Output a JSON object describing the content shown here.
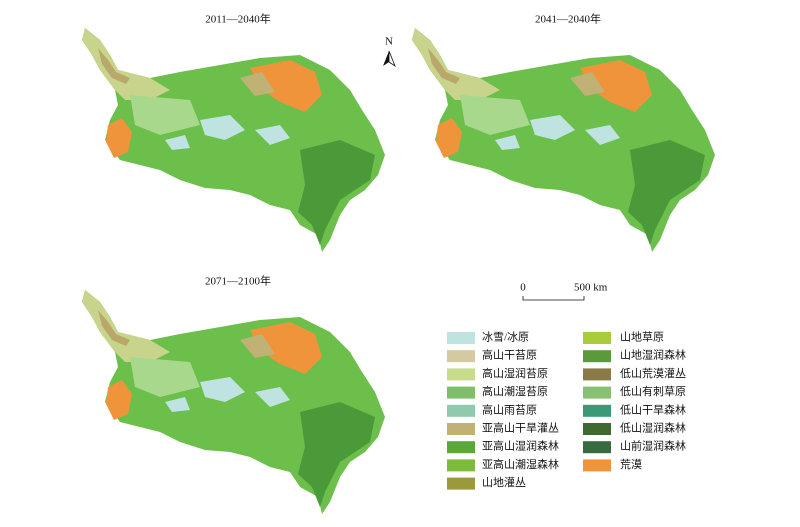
{
  "maps": [
    {
      "title": "2011—2040年"
    },
    {
      "title": "2041—2040年"
    },
    {
      "title": "2071—2100年"
    }
  ],
  "north_arrow": "N",
  "scale_bar": {
    "start": "0",
    "end": "500 km"
  },
  "legend": [
    {
      "label": "冰雪/冰原",
      "color": "#bfe3e0"
    },
    {
      "label": "高山干苔原",
      "color": "#d4c9a0"
    },
    {
      "label": "高山湿润苔原",
      "color": "#c8dc8c"
    },
    {
      "label": "高山潮湿苔原",
      "color": "#7fbf6a"
    },
    {
      "label": "高山雨苔原",
      "color": "#8fcaae"
    },
    {
      "label": "亚高山干旱灌丛",
      "color": "#bfb274"
    },
    {
      "label": "亚高山湿润森林",
      "color": "#5aa83a"
    },
    {
      "label": "亚高山潮湿森林",
      "color": "#7dbb3c"
    },
    {
      "label": "山地灌丛",
      "color": "#9a9a3c"
    },
    {
      "label": "山地草原",
      "color": "#a8cc3c"
    },
    {
      "label": "山地湿润森林",
      "color": "#5a9a3a"
    },
    {
      "label": "低山荒漠灌丛",
      "color": "#8a7a48"
    },
    {
      "label": "低山有刺草原",
      "color": "#86c070"
    },
    {
      "label": "低山干旱森林",
      "color": "#3a9a78"
    },
    {
      "label": "低山湿润森林",
      "color": "#3e6a30"
    },
    {
      "label": "山前湿润森林",
      "color": "#3a6a40"
    },
    {
      "label": "荒漠",
      "color": "#f0943c"
    }
  ]
}
